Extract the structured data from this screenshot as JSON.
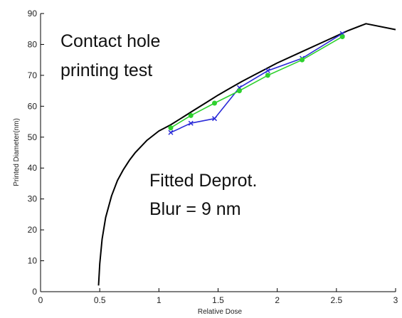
{
  "chart_data": {
    "type": "line",
    "xlabel": "Relative Dose",
    "ylabel": "Printed Diameter(nm)",
    "xlim": [
      0,
      3
    ],
    "ylim": [
      0,
      90
    ],
    "x_ticks": [
      0,
      0.5,
      1,
      1.5,
      2,
      2.5,
      3
    ],
    "y_ticks": [
      0,
      10,
      20,
      30,
      40,
      50,
      60,
      70,
      80,
      90
    ],
    "annotations": [
      {
        "lines": [
          "Contact hole",
          "printing test"
        ]
      },
      {
        "lines": [
          "Fitted Deprot.",
          "Blur = 9 nm"
        ]
      }
    ],
    "series": [
      {
        "color": "#000000",
        "marker": "none",
        "x": [
          0.49,
          0.5,
          0.52,
          0.55,
          0.6,
          0.65,
          0.7,
          0.75,
          0.8,
          0.85,
          0.9,
          0.95,
          1.0,
          1.05,
          1.1,
          1.15,
          1.2,
          1.3,
          1.4,
          1.5,
          1.6,
          1.7,
          1.8,
          1.9,
          2.0,
          2.2,
          2.4,
          2.6,
          2.75,
          3.0
        ],
        "y": [
          2,
          9,
          17,
          24,
          31,
          36,
          39.5,
          42.5,
          45,
          47,
          49,
          50.5,
          52,
          53,
          54,
          55.2,
          56.4,
          58.8,
          61.2,
          63.6,
          65.8,
          68,
          70,
          72,
          74,
          77.5,
          81,
          84.5,
          86.7,
          84.8
        ]
      },
      {
        "color": "#2a2ad8",
        "marker": "x",
        "x": [
          1.1,
          1.27,
          1.47,
          1.68,
          1.92,
          2.21,
          2.55
        ],
        "y": [
          51.5,
          54.5,
          56,
          66,
          71.5,
          75.5,
          83.5
        ]
      },
      {
        "color": "#2ed12e",
        "marker": "o",
        "x": [
          1.1,
          1.27,
          1.47,
          1.68,
          1.92,
          2.21,
          2.55
        ],
        "y": [
          53,
          57,
          61,
          65,
          70,
          75,
          82.5
        ]
      }
    ]
  }
}
